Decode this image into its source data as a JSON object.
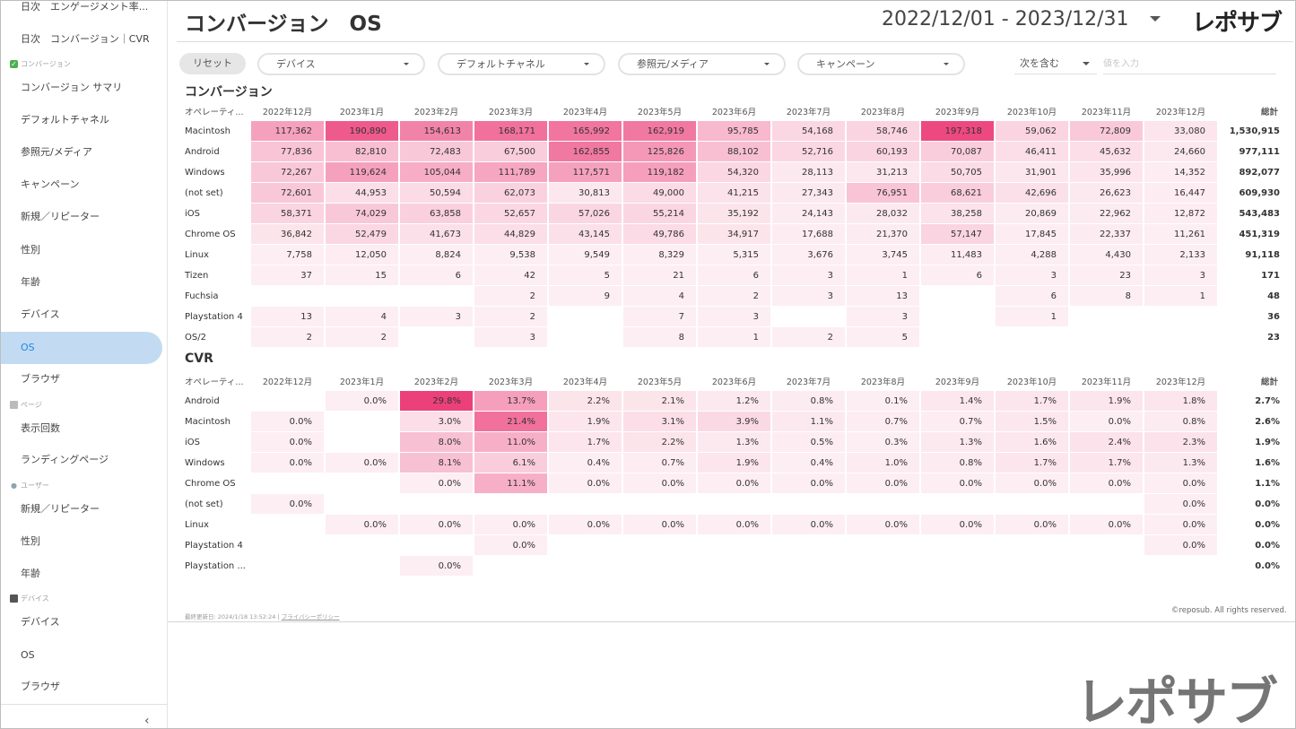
{
  "sidebar": {
    "items": [
      {
        "label": "日次　エンゲージメント率..."
      },
      {
        "label": "日次　コンバージョン｜CVR"
      },
      {
        "label": "コンバージョン サマリ"
      },
      {
        "label": "デフォルトチャネル"
      },
      {
        "label": "参照元/メディア"
      },
      {
        "label": "キャンペーン"
      },
      {
        "label": "新規／リピーター"
      },
      {
        "label": "性別"
      },
      {
        "label": "年齢"
      },
      {
        "label": "デバイス"
      },
      {
        "label": "OS"
      },
      {
        "label": "ブラウザ"
      },
      {
        "label": "表示回数"
      },
      {
        "label": "ランディングページ"
      },
      {
        "label": "新規／リピーター"
      },
      {
        "label": "性別"
      },
      {
        "label": "年齢"
      },
      {
        "label": "デバイス"
      },
      {
        "label": "OS"
      },
      {
        "label": "ブラウザ"
      }
    ],
    "sections": {
      "conversion": "コンバージョン",
      "page": "ページ",
      "user": "ユーザー",
      "device": "デバイス"
    },
    "collapse_glyph": "‹"
  },
  "header": {
    "title": "コンバージョン　OS",
    "date_range": "2022/12/01 - 2023/12/31",
    "logo": "レポサブ"
  },
  "filters": {
    "reset": "リセット",
    "device": "デバイス",
    "channel": "デフォルトチャネル",
    "source": "参照元/メディア",
    "campaign": "キャンペーン",
    "include": "次を含む",
    "value_placeholder": "値を入力"
  },
  "conversion_table": {
    "title": "コンバージョン",
    "headers": [
      "オペレーティ...",
      "2022年12月",
      "2023年1月",
      "2023年2月",
      "2023年3月",
      "2023年4月",
      "2023年5月",
      "2023年6月",
      "2023年7月",
      "2023年8月",
      "2023年9月",
      "2023年10月",
      "2023年11月",
      "2023年12月",
      "総計"
    ],
    "rows": [
      {
        "label": "Macintosh",
        "values": [
          "117,362",
          "190,890",
          "154,613",
          "168,171",
          "165,992",
          "162,919",
          "95,785",
          "54,168",
          "58,746",
          "197,318",
          "59,062",
          "72,809",
          "33,080"
        ],
        "total": "1,530,915",
        "heat": [
          0.45,
          0.85,
          0.62,
          0.72,
          0.7,
          0.68,
          0.32,
          0.14,
          0.16,
          0.95,
          0.16,
          0.22,
          0.06
        ]
      },
      {
        "label": "Android",
        "values": [
          "77,836",
          "82,810",
          "72,483",
          "67,500",
          "162,855",
          "125,826",
          "88,102",
          "52,716",
          "60,193",
          "70,087",
          "46,411",
          "45,632",
          "24,660"
        ],
        "total": "977,111",
        "heat": [
          0.25,
          0.28,
          0.23,
          0.2,
          0.68,
          0.5,
          0.28,
          0.14,
          0.16,
          0.2,
          0.1,
          0.1,
          0.04
        ]
      },
      {
        "label": "Windows",
        "values": [
          "72,267",
          "119,624",
          "105,044",
          "111,789",
          "117,571",
          "119,182",
          "54,320",
          "28,113",
          "31,213",
          "50,705",
          "31,901",
          "35,996",
          "14,352"
        ],
        "total": "892,077",
        "heat": [
          0.23,
          0.45,
          0.38,
          0.42,
          0.45,
          0.46,
          0.14,
          0.04,
          0.05,
          0.12,
          0.05,
          0.06,
          0.02
        ]
      },
      {
        "label": "(not set)",
        "values": [
          "72,601",
          "44,953",
          "50,594",
          "62,073",
          "30,813",
          "49,000",
          "41,215",
          "27,343",
          "76,951",
          "68,621",
          "42,696",
          "26,623",
          "16,447"
        ],
        "total": "609,930",
        "heat": [
          0.23,
          0.1,
          0.12,
          0.17,
          0.05,
          0.12,
          0.08,
          0.04,
          0.25,
          0.2,
          0.09,
          0.04,
          0.02
        ]
      },
      {
        "label": "iOS",
        "values": [
          "58,371",
          "74,029",
          "63,858",
          "52,657",
          "57,026",
          "55,214",
          "35,192",
          "24,143",
          "28,032",
          "38,258",
          "20,869",
          "22,962",
          "12,872"
        ],
        "total": "543,483",
        "heat": [
          0.16,
          0.23,
          0.18,
          0.14,
          0.15,
          0.15,
          0.07,
          0.03,
          0.04,
          0.08,
          0.03,
          0.03,
          0.02
        ]
      },
      {
        "label": "Chrome OS",
        "values": [
          "36,842",
          "52,479",
          "41,673",
          "44,829",
          "43,145",
          "49,786",
          "34,917",
          "17,688",
          "21,370",
          "57,147",
          "17,845",
          "22,337",
          "11,261"
        ],
        "total": "451,319",
        "heat": [
          0.07,
          0.14,
          0.09,
          0.1,
          0.09,
          0.12,
          0.07,
          0.02,
          0.03,
          0.16,
          0.02,
          0.03,
          0.01
        ]
      },
      {
        "label": "Linux",
        "values": [
          "7,758",
          "12,050",
          "8,824",
          "9,538",
          "9,549",
          "8,329",
          "5,315",
          "3,676",
          "3,745",
          "11,483",
          "4,288",
          "4,430",
          "2,133"
        ],
        "total": "91,118",
        "heat": [
          0.01,
          0.02,
          0.01,
          0.01,
          0.01,
          0.01,
          0.01,
          0.01,
          0.01,
          0.02,
          0.01,
          0.01,
          0.01
        ]
      },
      {
        "label": "Tizen",
        "values": [
          "37",
          "15",
          "6",
          "42",
          "5",
          "21",
          "6",
          "3",
          "1",
          "6",
          "3",
          "23",
          "3"
        ],
        "total": "171",
        "heat": [
          0.01,
          0.01,
          0.01,
          0.01,
          0.01,
          0.01,
          0.01,
          0.01,
          0.01,
          0.01,
          0.01,
          0.01,
          0.01
        ]
      },
      {
        "label": "Fuchsia",
        "values": [
          "",
          "",
          "",
          "2",
          "9",
          "4",
          "2",
          "3",
          "13",
          "",
          "6",
          "8",
          "1"
        ],
        "total": "48",
        "heat": [
          0,
          0,
          0,
          0.01,
          0.01,
          0.01,
          0.01,
          0.01,
          0.01,
          0,
          0.01,
          0.01,
          0.01
        ]
      },
      {
        "label": "Playstation 4",
        "values": [
          "13",
          "4",
          "3",
          "2",
          "",
          "7",
          "3",
          "",
          "3",
          "",
          "1",
          "",
          ""
        ],
        "total": "36",
        "heat": [
          0.01,
          0.01,
          0.01,
          0.01,
          0,
          0.01,
          0.01,
          0,
          0.01,
          0,
          0.01,
          0,
          0
        ]
      },
      {
        "label": "OS/2",
        "values": [
          "2",
          "2",
          "",
          "3",
          "",
          "8",
          "1",
          "2",
          "5",
          "",
          "",
          "",
          ""
        ],
        "total": "23",
        "heat": [
          0.01,
          0.01,
          0,
          0.01,
          0,
          0.01,
          0.01,
          0.01,
          0.01,
          0,
          0,
          0,
          0
        ]
      }
    ]
  },
  "cvr_table": {
    "title": "CVR",
    "headers": [
      "オペレーティ...",
      "2022年12月",
      "2023年1月",
      "2023年2月",
      "2023年3月",
      "2023年4月",
      "2023年5月",
      "2023年6月",
      "2023年7月",
      "2023年8月",
      "2023年9月",
      "2023年10月",
      "2023年11月",
      "2023年12月",
      "総計"
    ],
    "rows": [
      {
        "label": "Android",
        "values": [
          "",
          "0.0%",
          "29.8%",
          "13.7%",
          "2.2%",
          "2.1%",
          "1.2%",
          "0.8%",
          "0.1%",
          "1.4%",
          "1.7%",
          "1.9%",
          "1.8%"
        ],
        "total": "2.7%",
        "heat": [
          0,
          0.01,
          1.0,
          0.46,
          0.07,
          0.07,
          0.04,
          0.03,
          0.01,
          0.05,
          0.06,
          0.06,
          0.06
        ]
      },
      {
        "label": "Macintosh",
        "values": [
          "0.0%",
          "",
          "3.0%",
          "21.4%",
          "1.9%",
          "3.1%",
          "3.9%",
          "1.1%",
          "0.7%",
          "0.7%",
          "1.5%",
          "0.0%",
          "0.8%"
        ],
        "total": "2.6%",
        "heat": [
          0.01,
          0,
          0.1,
          0.72,
          0.06,
          0.1,
          0.13,
          0.04,
          0.02,
          0.02,
          0.05,
          0.01,
          0.03
        ]
      },
      {
        "label": "iOS",
        "values": [
          "0.0%",
          "",
          "8.0%",
          "11.0%",
          "1.7%",
          "2.2%",
          "1.3%",
          "0.5%",
          "0.3%",
          "1.3%",
          "1.6%",
          "2.4%",
          "2.3%"
        ],
        "total": "1.9%",
        "heat": [
          0.01,
          0,
          0.27,
          0.37,
          0.06,
          0.07,
          0.04,
          0.02,
          0.01,
          0.04,
          0.05,
          0.08,
          0.08
        ]
      },
      {
        "label": "Windows",
        "values": [
          "0.0%",
          "0.0%",
          "8.1%",
          "6.1%",
          "0.4%",
          "0.7%",
          "1.9%",
          "0.4%",
          "1.0%",
          "0.8%",
          "1.7%",
          "1.7%",
          "1.3%"
        ],
        "total": "1.6%",
        "heat": [
          0.01,
          0.01,
          0.27,
          0.2,
          0.01,
          0.02,
          0.06,
          0.01,
          0.03,
          0.03,
          0.06,
          0.06,
          0.04
        ]
      },
      {
        "label": "Chrome OS",
        "values": [
          "",
          "",
          "0.0%",
          "11.1%",
          "0.0%",
          "0.0%",
          "0.0%",
          "0.0%",
          "0.0%",
          "0.0%",
          "0.0%",
          "0.0%",
          "0.0%"
        ],
        "total": "1.1%",
        "heat": [
          0,
          0,
          0.01,
          0.37,
          0.01,
          0.01,
          0.01,
          0.01,
          0.01,
          0.01,
          0.01,
          0.01,
          0.01
        ]
      },
      {
        "label": "(not set)",
        "values": [
          "0.0%",
          "",
          "",
          "",
          "",
          "",
          "",
          "",
          "",
          "",
          "",
          "",
          "0.0%"
        ],
        "total": "0.0%",
        "heat": [
          0.01,
          0,
          0,
          0,
          0,
          0,
          0,
          0,
          0,
          0,
          0,
          0,
          0.01
        ]
      },
      {
        "label": "Linux",
        "values": [
          "",
          "0.0%",
          "0.0%",
          "0.0%",
          "0.0%",
          "0.0%",
          "0.0%",
          "0.0%",
          "0.0%",
          "0.0%",
          "0.0%",
          "0.0%",
          "0.0%"
        ],
        "total": "0.0%",
        "heat": [
          0,
          0.01,
          0.01,
          0.01,
          0.01,
          0.01,
          0.01,
          0.01,
          0.01,
          0.01,
          0.01,
          0.01,
          0.01
        ]
      },
      {
        "label": "Playstation 4",
        "values": [
          "",
          "",
          "",
          "0.0%",
          "",
          "",
          "",
          "",
          "",
          "",
          "",
          "",
          "0.0%"
        ],
        "total": "0.0%",
        "heat": [
          0,
          0,
          0,
          0.01,
          0,
          0,
          0,
          0,
          0,
          0,
          0,
          0,
          0.01
        ]
      },
      {
        "label": "Playstation ...",
        "values": [
          "",
          "",
          "0.0%",
          "",
          "",
          "",
          "",
          "",
          "",
          "",
          "",
          "",
          ""
        ],
        "total": "0.0%",
        "heat": [
          0,
          0,
          0.01,
          0,
          0,
          0,
          0,
          0,
          0,
          0,
          0,
          0,
          0
        ]
      }
    ]
  },
  "footer": {
    "updated": "最終更新日: 2024/1/18 13:52:24",
    "separator": "|",
    "privacy": "プライバシーポリシー",
    "copyright": "©reposub. All rights reserved."
  },
  "colors": {
    "active_bg": "#c3dbf2",
    "active_text": "#1e88e5",
    "heat_low": "#fdf0f4",
    "heat_high": "#ec407a"
  },
  "brand_logo_bottom": "レポサブ"
}
